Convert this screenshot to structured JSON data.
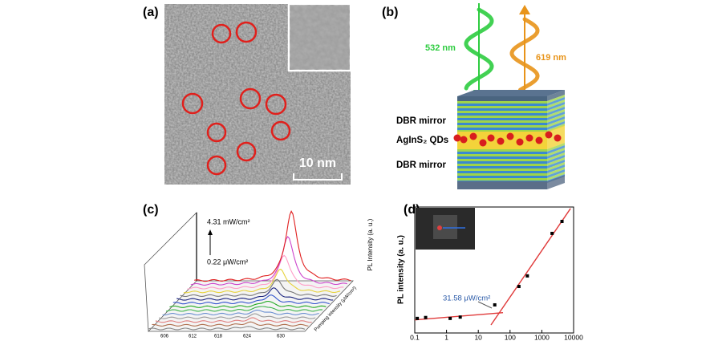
{
  "panel_a": {
    "label": "(a)",
    "scale_bar": "10 nm"
  },
  "panel_b": {
    "label": "(b)",
    "pump": "532 nm",
    "emission": "619 nm",
    "layers": [
      "DBR mirror",
      "AgInS₂ QDs",
      "DBR mirror"
    ]
  },
  "panel_c": {
    "label": "(c)",
    "y_label": "PL Intensity (a. u.)",
    "z_label": "Pumping intensity (μW/cm²)",
    "high": "4.31 mW/cm²",
    "low": "0.22 μW/cm²",
    "xticks": [
      606,
      612,
      618,
      624,
      630
    ],
    "curve_colors": [
      "#888888",
      "#b07050",
      "#e08080",
      "#999999",
      "#6a8fd0",
      "#3cb44b",
      "#22aa22",
      "#3355cc",
      "#1a237e",
      "#777777",
      "#e6d23a",
      "#ff9ec8",
      "#cc44cc",
      "#e02020"
    ]
  },
  "chart_data": {
    "type": "scatter",
    "label": "(d)",
    "y_label": "PL intensity (a. u.)",
    "x": [
      0.12,
      0.22,
      1.3,
      2.7,
      33,
      190,
      350,
      2100,
      4310
    ],
    "values": [
      2.9,
      3.1,
      2.9,
      3.2,
      7.8,
      30,
      65,
      1450,
      3480
    ],
    "color": "#000000",
    "xlog": true,
    "ylog": true,
    "xlim": [
      0.1,
      10000
    ],
    "xticks": [
      0.1,
      1,
      10,
      100,
      1000,
      10000
    ],
    "ylim": [
      1,
      10000
    ],
    "fits": [
      {
        "x": [
          0.1,
          60
        ],
        "values": [
          2.6,
          4.4
        ]
      },
      {
        "x": [
          25,
          8000
        ],
        "values": [
          1.8,
          9000
        ]
      }
    ],
    "fit_color": "#e03a3a",
    "annotation": "31.58 μW/cm²"
  }
}
